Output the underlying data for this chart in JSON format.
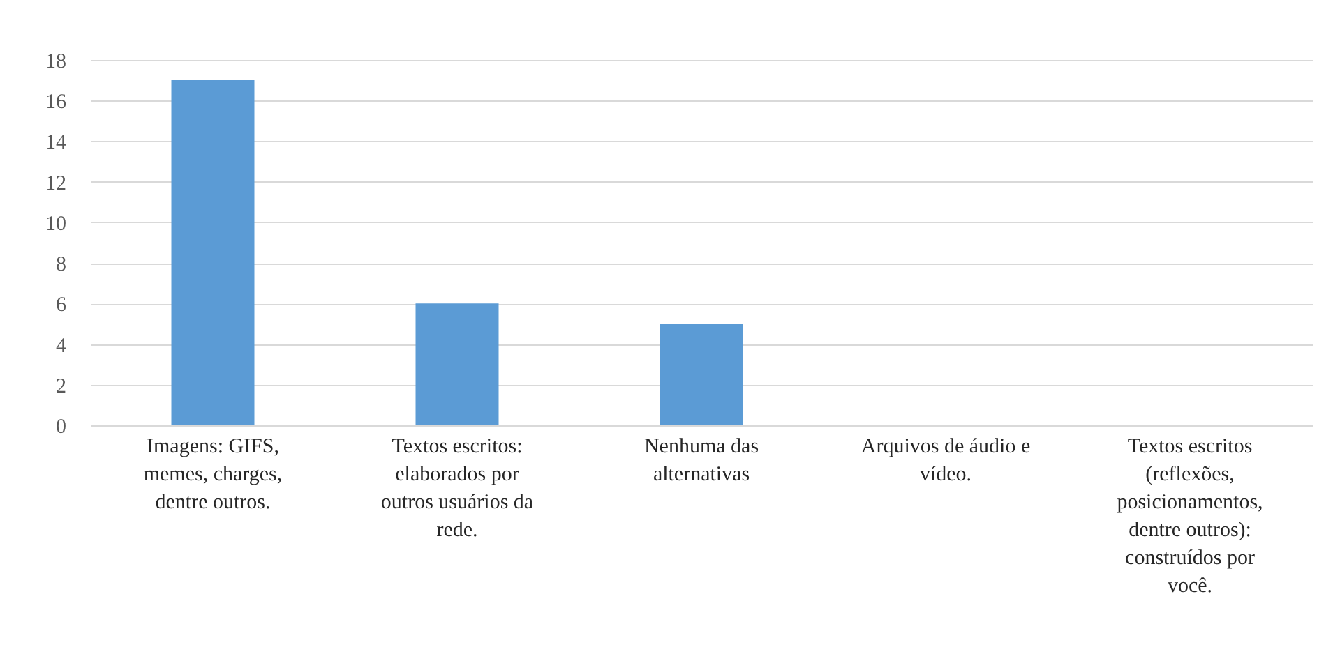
{
  "chart_data": {
    "type": "bar",
    "categories": [
      "Imagens: GIFS, memes, charges, dentre outros.",
      "Textos escritos: elaborados por outros usuários da rede.",
      "Nenhuma das alternativas",
      "Arquivos de áudio e vídeo.",
      "Textos escritos (reflexões, posicionamentos, dentre outros): construídos por você."
    ],
    "values": [
      17,
      6,
      5,
      0,
      0
    ],
    "color": "#5b9bd5",
    "ylim": [
      0,
      18
    ],
    "yticks": [
      0,
      2,
      4,
      6,
      8,
      10,
      12,
      14,
      16,
      18
    ],
    "grid": "y"
  }
}
